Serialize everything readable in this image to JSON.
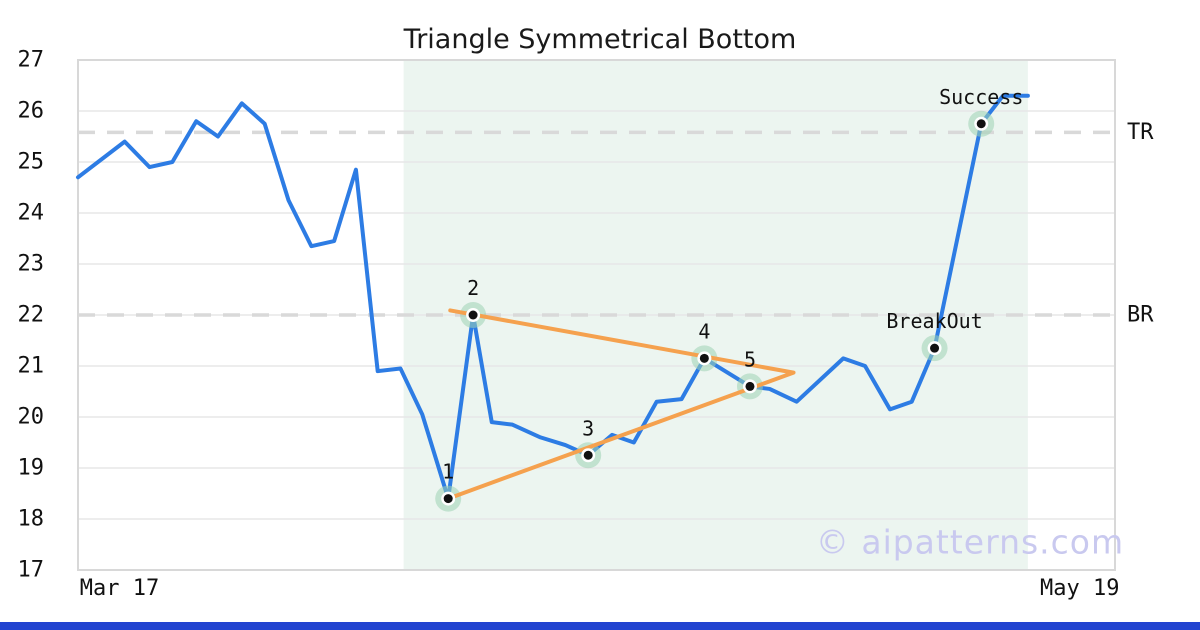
{
  "title": "Triangle Symmetrical Bottom",
  "watermark": "© aipatterns.com",
  "colors": {
    "price_line": "#2d7ce4",
    "triangle_line": "#f5a14e",
    "marker_halo": "#9ed2b4",
    "marker_dot": "#111111",
    "region_fill": "#ecf5f0",
    "gridline": "#e7e7e7",
    "plot_border": "#d8d8d8",
    "level_dash": "#d9d9d9",
    "watermark": "#c9c9ef",
    "bottom_bar": "#2244d0"
  },
  "chart_data": {
    "type": "line",
    "title": "Triangle Symmetrical Bottom",
    "xlabel": "",
    "ylabel": "",
    "ylim": [
      17,
      27
    ],
    "y_tick_step": 1,
    "y_ticks": [
      27,
      26,
      25,
      24,
      23,
      22,
      21,
      20,
      19,
      18,
      17
    ],
    "grid": true,
    "x_ticks": [
      {
        "label": "Mar 17",
        "x": 0.04
      },
      {
        "label": "May 19",
        "x": 0.966
      }
    ],
    "levels": [
      {
        "label": "TR",
        "value": 25.58
      },
      {
        "label": "BR",
        "value": 22.0
      }
    ],
    "shaded_region": {
      "x0": 0.314,
      "x1": 0.916
    },
    "price_series": [
      {
        "x": 0.0,
        "y": 24.7
      },
      {
        "x": 0.045,
        "y": 25.4
      },
      {
        "x": 0.069,
        "y": 24.9
      },
      {
        "x": 0.091,
        "y": 25.0
      },
      {
        "x": 0.114,
        "y": 25.8
      },
      {
        "x": 0.135,
        "y": 25.5
      },
      {
        "x": 0.158,
        "y": 26.15
      },
      {
        "x": 0.18,
        "y": 25.75
      },
      {
        "x": 0.203,
        "y": 24.25
      },
      {
        "x": 0.225,
        "y": 23.35
      },
      {
        "x": 0.247,
        "y": 23.45
      },
      {
        "x": 0.268,
        "y": 24.85
      },
      {
        "x": 0.289,
        "y": 20.9
      },
      {
        "x": 0.311,
        "y": 20.95
      },
      {
        "x": 0.332,
        "y": 20.05
      },
      {
        "x": 0.357,
        "y": 18.4
      },
      {
        "x": 0.381,
        "y": 22.0
      },
      {
        "x": 0.399,
        "y": 19.9
      },
      {
        "x": 0.419,
        "y": 19.85
      },
      {
        "x": 0.446,
        "y": 19.6
      },
      {
        "x": 0.47,
        "y": 19.45
      },
      {
        "x": 0.492,
        "y": 19.25
      },
      {
        "x": 0.515,
        "y": 19.65
      },
      {
        "x": 0.536,
        "y": 19.5
      },
      {
        "x": 0.558,
        "y": 20.3
      },
      {
        "x": 0.582,
        "y": 20.35
      },
      {
        "x": 0.604,
        "y": 21.15
      },
      {
        "x": 0.648,
        "y": 20.6
      },
      {
        "x": 0.667,
        "y": 20.55
      },
      {
        "x": 0.693,
        "y": 20.3
      },
      {
        "x": 0.738,
        "y": 21.15
      },
      {
        "x": 0.759,
        "y": 21.0
      },
      {
        "x": 0.783,
        "y": 20.15
      },
      {
        "x": 0.804,
        "y": 20.3
      },
      {
        "x": 0.826,
        "y": 21.35
      },
      {
        "x": 0.871,
        "y": 25.75
      },
      {
        "x": 0.892,
        "y": 26.3
      },
      {
        "x": 0.916,
        "y": 26.3
      }
    ],
    "pattern_points": [
      {
        "label": "1",
        "x": 0.357,
        "y": 18.4
      },
      {
        "label": "2",
        "x": 0.381,
        "y": 22.0
      },
      {
        "label": "3",
        "x": 0.492,
        "y": 19.25
      },
      {
        "label": "4",
        "x": 0.604,
        "y": 21.15
      },
      {
        "label": "5",
        "x": 0.648,
        "y": 20.6
      },
      {
        "label": "BreakOut",
        "x": 0.826,
        "y": 21.35
      },
      {
        "label": "Success",
        "x": 0.871,
        "y": 25.75
      }
    ],
    "triangle": {
      "upper_start": {
        "x": 0.359,
        "y": 22.09
      },
      "apex": {
        "x": 0.69,
        "y": 20.87
      },
      "lower_start": {
        "x": 0.357,
        "y": 18.4
      }
    },
    "legend_position": "none"
  }
}
